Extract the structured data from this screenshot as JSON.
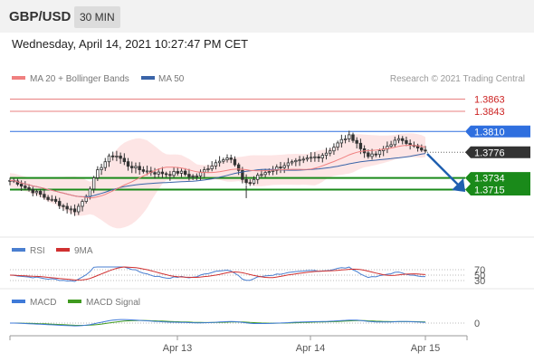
{
  "header": {
    "symbol": "GBP/USD",
    "timeframe": "30 MIN"
  },
  "datetime": "Wednesday, April 14, 2021 10:27:47 PM CET",
  "legend": {
    "ma20": "MA 20 + Bollinger Bands",
    "ma50": "MA 50",
    "credit": "Research © 2021 Trading Central",
    "rsi": "RSI",
    "rsi_ma": "9MA",
    "macd": "MACD",
    "macd_signal": "MACD Signal"
  },
  "colors": {
    "resistance": "#e88080",
    "resistance_text": "#cc2222",
    "pivot": "#2f6fdf",
    "support": "#1a8a1a",
    "current": "#333333",
    "ma20": "#f08080",
    "ma50": "#3a64a8",
    "bollinger_fill": "#fde0e0",
    "candle": "#333333",
    "rsi": "#4a7fd0",
    "rsi_ma": "#d03030",
    "macd": "#3f7ad8",
    "macd_signal": "#3f9a1f",
    "arrow": "#1f5fb0"
  },
  "chart_data": [
    {
      "type": "candlestick",
      "title": "GBP/USD",
      "timeframe": "30 MIN",
      "x_ticks": [
        "Apr 13",
        "Apr 14",
        "Apr 15"
      ],
      "y_range": [
        1.3655,
        1.388
      ],
      "levels": [
        {
          "label": "1.3863",
          "value": 1.3863,
          "kind": "resistance"
        },
        {
          "label": "1.3843",
          "value": 1.3843,
          "kind": "resistance"
        },
        {
          "label": "1.3810",
          "value": 1.381,
          "kind": "pivot"
        },
        {
          "label": "1.3776",
          "value": 1.3776,
          "kind": "current"
        },
        {
          "label": "1.3734",
          "value": 1.3734,
          "kind": "support"
        },
        {
          "label": "1.3715",
          "value": 1.3715,
          "kind": "support"
        }
      ],
      "close_path": [
        1.373,
        1.3728,
        1.3722,
        1.3716,
        1.3712,
        1.3708,
        1.3702,
        1.3698,
        1.3694,
        1.3688,
        1.3684,
        1.368,
        1.369,
        1.3705,
        1.3725,
        1.3745,
        1.3758,
        1.3768,
        1.3772,
        1.3765,
        1.3755,
        1.3752,
        1.3748,
        1.3746,
        1.3744,
        1.3742,
        1.3742,
        1.374,
        1.3742,
        1.3744,
        1.374,
        1.3736,
        1.3738,
        1.3745,
        1.3752,
        1.3758,
        1.3765,
        1.3768,
        1.3762,
        1.3745,
        1.3728,
        1.3725,
        1.3735,
        1.374,
        1.3745,
        1.3748,
        1.3752,
        1.3756,
        1.3758,
        1.376,
        1.3762,
        1.3766,
        1.3768,
        1.377,
        1.3775,
        1.3782,
        1.379,
        1.3798,
        1.3802,
        1.3796,
        1.378,
        1.3772,
        1.377,
        1.3775,
        1.3782,
        1.379,
        1.3795,
        1.3797,
        1.3792,
        1.3786,
        1.378,
        1.3776
      ]
    },
    {
      "type": "line",
      "title": "RSI",
      "series": [
        {
          "name": "RSI"
        },
        {
          "name": "9MA"
        }
      ],
      "y_ticks": [
        70,
        50,
        30
      ]
    },
    {
      "type": "line",
      "title": "MACD",
      "series": [
        {
          "name": "MACD"
        },
        {
          "name": "MACD Signal"
        }
      ],
      "y_ticks": [
        0
      ]
    }
  ]
}
